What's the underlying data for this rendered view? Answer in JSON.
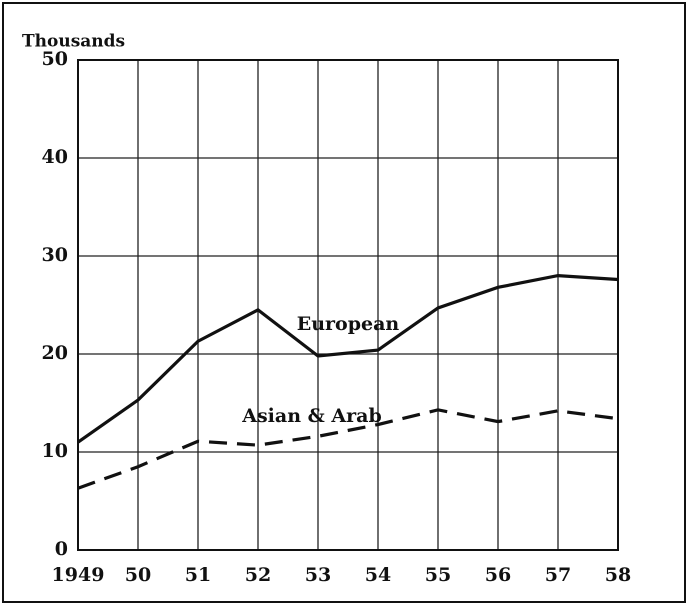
{
  "chart_data": {
    "type": "line",
    "y_label": "Thousands",
    "categories": [
      "1949",
      "50",
      "51",
      "52",
      "53",
      "54",
      "55",
      "56",
      "57",
      "58"
    ],
    "series": [
      {
        "name": "European",
        "color": "#111111",
        "dashed": false,
        "values": [
          11,
          15.3,
          21.3,
          24.5,
          19.8,
          20.4,
          24.7,
          26.8,
          28,
          27.6
        ]
      },
      {
        "name": "Asian & Arab",
        "color": "#111111",
        "dashed": true,
        "values": [
          6.3,
          8.5,
          11.1,
          10.7,
          11.6,
          12.8,
          14.3,
          13.1,
          14.2,
          13.4
        ]
      }
    ],
    "ylim": [
      0,
      50
    ],
    "yticks": [
      0,
      10,
      20,
      30,
      40,
      50
    ],
    "grid": true
  }
}
